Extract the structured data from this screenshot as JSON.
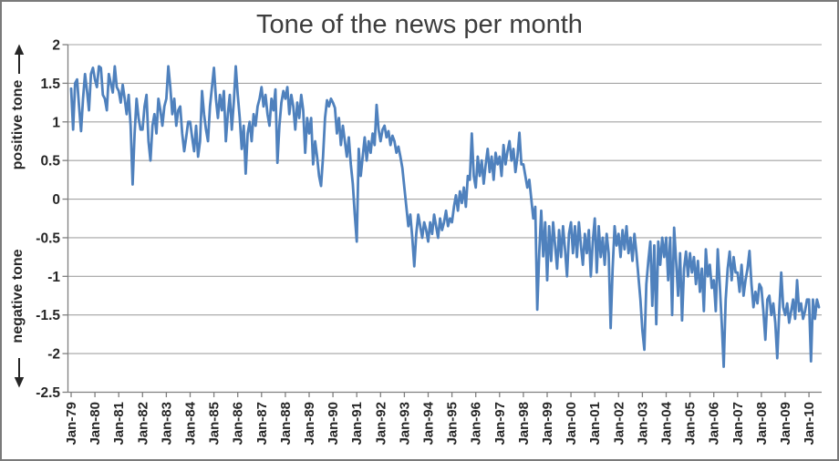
{
  "colors": {
    "line": "#4F81BD",
    "grid": "#a3a3a3",
    "axis": "#7f7f7f",
    "text": "#262626",
    "title": "#3d3d3d",
    "border": "#7a7a7a",
    "background": "#ffffff"
  },
  "y_axis": {
    "positive_label": "positive tone",
    "negative_label": "negative tone",
    "icons": {
      "positive": "up-arrow",
      "negative": "down-arrow"
    }
  },
  "chart_data": {
    "type": "line",
    "title": "Tone of the news per month",
    "frequency": "monthly",
    "x_start": "Jan-1979",
    "x_end": "Jun-2010",
    "x_tick_labels": [
      "Jan-79",
      "Jan-80",
      "Jan-81",
      "Jan-82",
      "Jan-83",
      "Jan-84",
      "Jan-85",
      "Jan-86",
      "Jan-87",
      "Jan-88",
      "Jan-89",
      "Jan-90",
      "Jan-91",
      "Jan-92",
      "Jan-93",
      "Jan-94",
      "Jan-95",
      "Jan-96",
      "Jan-97",
      "Jan-98",
      "Jan-99",
      "Jan-00",
      "Jan-01",
      "Jan-02",
      "Jan-03",
      "Jan-04",
      "Jan-05",
      "Jan-06",
      "Jan-07",
      "Jan-08",
      "Jan-09",
      "Jan-10"
    ],
    "y_ticks": [
      2,
      1.5,
      1,
      0.5,
      0,
      -0.5,
      -1,
      -1.5,
      -2,
      -2.5
    ],
    "ylim": [
      -2.5,
      2
    ],
    "grid": "horizontal",
    "legend": "none",
    "series": [
      {
        "name": "tone of the news",
        "values": [
          1.43,
          0.9,
          1.5,
          1.55,
          1.2,
          0.88,
          1.3,
          1.62,
          1.4,
          1.15,
          1.62,
          1.7,
          1.55,
          1.45,
          1.72,
          1.7,
          1.35,
          1.3,
          1.15,
          1.62,
          1.5,
          1.38,
          1.72,
          1.45,
          1.4,
          1.25,
          1.48,
          1.3,
          1.1,
          1.35,
          0.95,
          0.19,
          0.85,
          1.3,
          1.05,
          0.9,
          0.9,
          1.2,
          1.35,
          0.75,
          0.5,
          0.95,
          1.1,
          0.85,
          1.3,
          1.15,
          0.95,
          1.2,
          1.3,
          1.72,
          1.45,
          1.1,
          1.3,
          0.95,
          1.15,
          1.2,
          0.85,
          0.62,
          0.8,
          1.0,
          1.0,
          0.8,
          0.62,
          0.95,
          0.55,
          0.75,
          1.4,
          1.1,
          0.9,
          0.75,
          1.2,
          1.45,
          1.7,
          1.3,
          1.05,
          1.35,
          1.15,
          1.4,
          0.75,
          1.1,
          1.35,
          0.9,
          1.25,
          1.72,
          1.35,
          1.05,
          0.65,
          0.95,
          0.33,
          0.85,
          1.0,
          0.75,
          1.1,
          0.95,
          1.2,
          1.3,
          1.45,
          1.2,
          1.35,
          1.1,
          0.95,
          1.3,
          1.15,
          1.42,
          0.47,
          0.95,
          1.25,
          1.4,
          1.3,
          1.45,
          1.1,
          1.35,
          1.2,
          0.9,
          1.25,
          1.05,
          1.35,
          1.15,
          0.6,
          1.05,
          0.85,
          1.05,
          0.45,
          0.75,
          0.55,
          0.3,
          0.17,
          0.55,
          1.05,
          1.28,
          1.2,
          1.3,
          1.25,
          1.18,
          0.85,
          1.05,
          0.7,
          0.95,
          0.75,
          0.55,
          0.8,
          0.45,
          0.2,
          -0.2,
          -0.55,
          0.65,
          0.3,
          0.55,
          0.8,
          0.5,
          0.75,
          0.6,
          0.85,
          0.7,
          1.22,
          0.9,
          0.75,
          0.9,
          0.95,
          0.8,
          0.88,
          0.7,
          0.82,
          0.75,
          0.6,
          0.68,
          0.55,
          0.4,
          0.15,
          -0.1,
          -0.35,
          -0.2,
          -0.5,
          -0.87,
          -0.45,
          -0.2,
          -0.35,
          -0.5,
          -0.3,
          -0.4,
          -0.55,
          -0.3,
          -0.45,
          -0.2,
          -0.35,
          -0.5,
          -0.25,
          -0.4,
          -0.3,
          -0.15,
          -0.35,
          -0.25,
          -0.3,
          -0.1,
          0.05,
          -0.15,
          0.1,
          -0.05,
          0.15,
          -0.1,
          0.3,
          0.25,
          0.85,
          0.3,
          0.15,
          0.55,
          0.3,
          0.5,
          0.2,
          0.45,
          0.65,
          0.35,
          0.55,
          0.25,
          0.6,
          0.45,
          0.55,
          0.3,
          0.7,
          0.45,
          0.62,
          0.75,
          0.5,
          0.65,
          0.35,
          0.55,
          0.86,
          0.45,
          0.45,
          0.3,
          0.15,
          0.25,
          0.0,
          -0.25,
          -0.1,
          -1.43,
          -0.7,
          -0.15,
          -0.74,
          -0.3,
          -1.05,
          -0.35,
          -0.8,
          -0.3,
          -0.6,
          -0.9,
          -0.4,
          -0.75,
          -0.35,
          -0.65,
          -1.0,
          -0.45,
          -0.3,
          -0.7,
          -0.35,
          -0.75,
          -0.3,
          -0.6,
          -0.85,
          -0.45,
          -0.7,
          -0.4,
          -1.0,
          -0.55,
          -0.25,
          -0.95,
          -0.35,
          -0.75,
          -0.5,
          -0.85,
          -0.45,
          -0.7,
          -1.67,
          -0.9,
          -0.35,
          -0.6,
          -0.45,
          -0.75,
          -0.4,
          -0.65,
          -0.35,
          -0.7,
          -0.5,
          -0.8,
          -0.45,
          -0.7,
          -1.0,
          -1.3,
          -1.7,
          -1.95,
          -1.1,
          -0.8,
          -0.55,
          -1.38,
          -0.6,
          -1.62,
          -0.55,
          -0.85,
          -0.5,
          -0.75,
          -0.5,
          -1.05,
          -0.5,
          -1.5,
          -0.37,
          -0.8,
          -1.25,
          -0.7,
          -1.57,
          -0.9,
          -0.68,
          -1.0,
          -0.7,
          -0.95,
          -0.75,
          -1.1,
          -0.8,
          -1.2,
          -0.9,
          -1.45,
          -0.65,
          -1.0,
          -0.85,
          -1.15,
          -1.05,
          -1.45,
          -0.65,
          -1.1,
          -1.6,
          -2.17,
          -1.3,
          -0.9,
          -0.68,
          -1.05,
          -0.75,
          -0.95,
          -0.95,
          -1.2,
          -0.85,
          -1.25,
          -1.05,
          -0.9,
          -0.67,
          -1.1,
          -1.4,
          -1.2,
          -1.35,
          -1.1,
          -1.15,
          -1.45,
          -1.82,
          -1.3,
          -1.25,
          -1.5,
          -1.35,
          -1.6,
          -2.06,
          -1.45,
          -0.95,
          -1.4,
          -1.5,
          -1.35,
          -1.6,
          -1.45,
          -1.3,
          -1.55,
          -1.05,
          -1.45,
          -1.35,
          -1.55,
          -1.45,
          -1.3,
          -1.3,
          -2.1,
          -1.3,
          -1.55,
          -1.3,
          -1.4
        ]
      }
    ]
  }
}
